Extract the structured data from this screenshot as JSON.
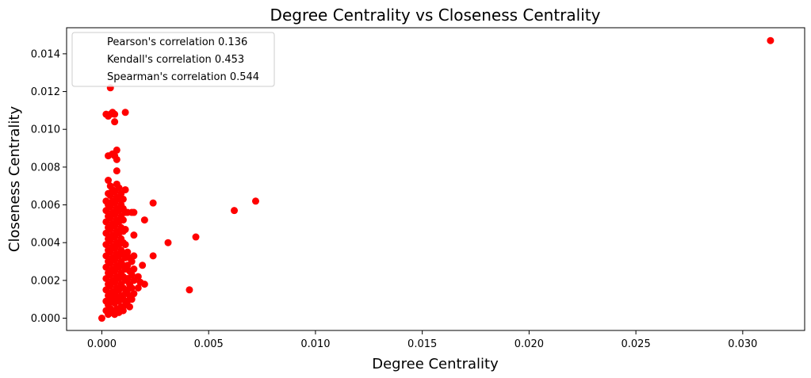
{
  "chart_data": {
    "type": "scatter",
    "title": "Degree Centrality vs Closeness Centrality",
    "xlabel": "Degree Centrality",
    "ylabel": "Closeness Centrality",
    "xlim": [
      -0.00165,
      0.0329
    ],
    "ylim": [
      -0.00065,
      0.01538
    ],
    "xticks": [
      0.0,
      0.005,
      0.01,
      0.015,
      0.02,
      0.025,
      0.03
    ],
    "xtick_labels": [
      "0.000",
      "0.005",
      "0.010",
      "0.015",
      "0.020",
      "0.025",
      "0.030"
    ],
    "yticks": [
      0.0,
      0.002,
      0.004,
      0.006,
      0.008,
      0.01,
      0.012,
      0.014
    ],
    "ytick_labels": [
      "0.000",
      "0.002",
      "0.004",
      "0.006",
      "0.008",
      "0.010",
      "0.012",
      "0.014"
    ],
    "grid": false,
    "legend_position": "top-left",
    "marker_color": "#ff0000",
    "legend": [
      "Pearson's correlation 0.136",
      "Kendall's correlation 0.453",
      "Spearman's correlation 0.544"
    ],
    "points": [
      [
        0.0,
        0.0
      ],
      [
        0.0002,
        0.0004
      ],
      [
        0.0002,
        0.0009
      ],
      [
        0.0002,
        0.0015
      ],
      [
        0.0002,
        0.0021
      ],
      [
        0.0002,
        0.0027
      ],
      [
        0.0002,
        0.0033
      ],
      [
        0.0002,
        0.0039
      ],
      [
        0.0002,
        0.0045
      ],
      [
        0.0002,
        0.0051
      ],
      [
        0.0002,
        0.0057
      ],
      [
        0.0002,
        0.0062
      ],
      [
        0.0003,
        0.0002
      ],
      [
        0.0003,
        0.0007
      ],
      [
        0.0003,
        0.0012
      ],
      [
        0.0003,
        0.0018
      ],
      [
        0.0003,
        0.0024
      ],
      [
        0.0003,
        0.003
      ],
      [
        0.0003,
        0.0036
      ],
      [
        0.0003,
        0.0042
      ],
      [
        0.0003,
        0.0048
      ],
      [
        0.0003,
        0.0054
      ],
      [
        0.0003,
        0.006
      ],
      [
        0.0003,
        0.0066
      ],
      [
        0.0003,
        0.0073
      ],
      [
        0.0003,
        0.0086
      ],
      [
        0.0002,
        0.0108
      ],
      [
        0.0003,
        0.0107
      ],
      [
        0.0004,
        0.0005
      ],
      [
        0.0004,
        0.0011
      ],
      [
        0.0004,
        0.0017
      ],
      [
        0.0004,
        0.0023
      ],
      [
        0.0004,
        0.0029
      ],
      [
        0.0004,
        0.0035
      ],
      [
        0.0004,
        0.0041
      ],
      [
        0.0004,
        0.0047
      ],
      [
        0.0004,
        0.0053
      ],
      [
        0.0004,
        0.0059
      ],
      [
        0.0004,
        0.0065
      ],
      [
        0.0004,
        0.007
      ],
      [
        0.0004,
        0.0108
      ],
      [
        0.0005,
        0.0003
      ],
      [
        0.0005,
        0.0009
      ],
      [
        0.0005,
        0.0014
      ],
      [
        0.0005,
        0.002
      ],
      [
        0.0005,
        0.0026
      ],
      [
        0.0005,
        0.0032
      ],
      [
        0.0005,
        0.0038
      ],
      [
        0.0005,
        0.0044
      ],
      [
        0.0005,
        0.005
      ],
      [
        0.0005,
        0.0056
      ],
      [
        0.0005,
        0.0062
      ],
      [
        0.0005,
        0.0068
      ],
      [
        0.0005,
        0.0087
      ],
      [
        0.0005,
        0.0109
      ],
      [
        0.0004,
        0.0122
      ],
      [
        0.0006,
        0.0002
      ],
      [
        0.0006,
        0.0008
      ],
      [
        0.0006,
        0.0013
      ],
      [
        0.0006,
        0.0019
      ],
      [
        0.0006,
        0.0025
      ],
      [
        0.0006,
        0.0031
      ],
      [
        0.0006,
        0.0037
      ],
      [
        0.0006,
        0.0043
      ],
      [
        0.0006,
        0.0049
      ],
      [
        0.0006,
        0.0055
      ],
      [
        0.0006,
        0.0061
      ],
      [
        0.0006,
        0.0067
      ],
      [
        0.0006,
        0.0108
      ],
      [
        0.0006,
        0.0104
      ],
      [
        0.0007,
        0.0005
      ],
      [
        0.0007,
        0.0011
      ],
      [
        0.0007,
        0.0016
      ],
      [
        0.0007,
        0.0022
      ],
      [
        0.0007,
        0.0028
      ],
      [
        0.0007,
        0.0034
      ],
      [
        0.0007,
        0.004
      ],
      [
        0.0007,
        0.0046
      ],
      [
        0.0007,
        0.0052
      ],
      [
        0.0007,
        0.0058
      ],
      [
        0.0007,
        0.0064
      ],
      [
        0.0007,
        0.0071
      ],
      [
        0.0007,
        0.0078
      ],
      [
        0.0007,
        0.0084
      ],
      [
        0.0007,
        0.0089
      ],
      [
        0.0006,
        0.0086
      ],
      [
        0.0008,
        0.0003
      ],
      [
        0.0008,
        0.0009
      ],
      [
        0.0008,
        0.0015
      ],
      [
        0.0008,
        0.0021
      ],
      [
        0.0008,
        0.0027
      ],
      [
        0.0008,
        0.0033
      ],
      [
        0.0008,
        0.0039
      ],
      [
        0.0008,
        0.0045
      ],
      [
        0.0008,
        0.0051
      ],
      [
        0.0008,
        0.0057
      ],
      [
        0.0008,
        0.0063
      ],
      [
        0.0008,
        0.0069
      ],
      [
        0.0009,
        0.0006
      ],
      [
        0.0009,
        0.0012
      ],
      [
        0.0009,
        0.0018
      ],
      [
        0.0009,
        0.0024
      ],
      [
        0.0009,
        0.003
      ],
      [
        0.0009,
        0.0036
      ],
      [
        0.0009,
        0.0042
      ],
      [
        0.0009,
        0.0048
      ],
      [
        0.0009,
        0.0054
      ],
      [
        0.0009,
        0.006
      ],
      [
        0.0009,
        0.0066
      ],
      [
        0.001,
        0.0004
      ],
      [
        0.001,
        0.001
      ],
      [
        0.001,
        0.0016
      ],
      [
        0.001,
        0.0022
      ],
      [
        0.001,
        0.0028
      ],
      [
        0.001,
        0.0034
      ],
      [
        0.001,
        0.004
      ],
      [
        0.001,
        0.0046
      ],
      [
        0.001,
        0.0052
      ],
      [
        0.001,
        0.0058
      ],
      [
        0.001,
        0.0063
      ],
      [
        0.0011,
        0.0007
      ],
      [
        0.0011,
        0.0013
      ],
      [
        0.0011,
        0.002
      ],
      [
        0.0011,
        0.0026
      ],
      [
        0.0011,
        0.0032
      ],
      [
        0.0011,
        0.0039
      ],
      [
        0.0011,
        0.0047
      ],
      [
        0.0011,
        0.0056
      ],
      [
        0.0011,
        0.0068
      ],
      [
        0.0011,
        0.0109
      ],
      [
        0.0012,
        0.0009
      ],
      [
        0.0012,
        0.0015
      ],
      [
        0.0012,
        0.0021
      ],
      [
        0.0012,
        0.0028
      ],
      [
        0.0012,
        0.0035
      ],
      [
        0.0012,
        0.0056
      ],
      [
        0.0013,
        0.0006
      ],
      [
        0.0013,
        0.0012
      ],
      [
        0.0013,
        0.0018
      ],
      [
        0.0013,
        0.0025
      ],
      [
        0.0013,
        0.0032
      ],
      [
        0.0014,
        0.001
      ],
      [
        0.0014,
        0.0016
      ],
      [
        0.0014,
        0.0023
      ],
      [
        0.0014,
        0.003
      ],
      [
        0.0014,
        0.0056
      ],
      [
        0.0015,
        0.0013
      ],
      [
        0.0015,
        0.002
      ],
      [
        0.0015,
        0.0026
      ],
      [
        0.0015,
        0.0033
      ],
      [
        0.0015,
        0.0044
      ],
      [
        0.0015,
        0.0056
      ],
      [
        0.0017,
        0.0016
      ],
      [
        0.0017,
        0.0022
      ],
      [
        0.0018,
        0.0019
      ],
      [
        0.0019,
        0.0028
      ],
      [
        0.002,
        0.0018
      ],
      [
        0.002,
        0.0052
      ],
      [
        0.0024,
        0.0033
      ],
      [
        0.0024,
        0.0061
      ],
      [
        0.0031,
        0.004
      ],
      [
        0.0041,
        0.0015
      ],
      [
        0.0044,
        0.0043
      ],
      [
        0.0062,
        0.0057
      ],
      [
        0.0072,
        0.0062
      ],
      [
        0.0313,
        0.0147
      ]
    ]
  }
}
